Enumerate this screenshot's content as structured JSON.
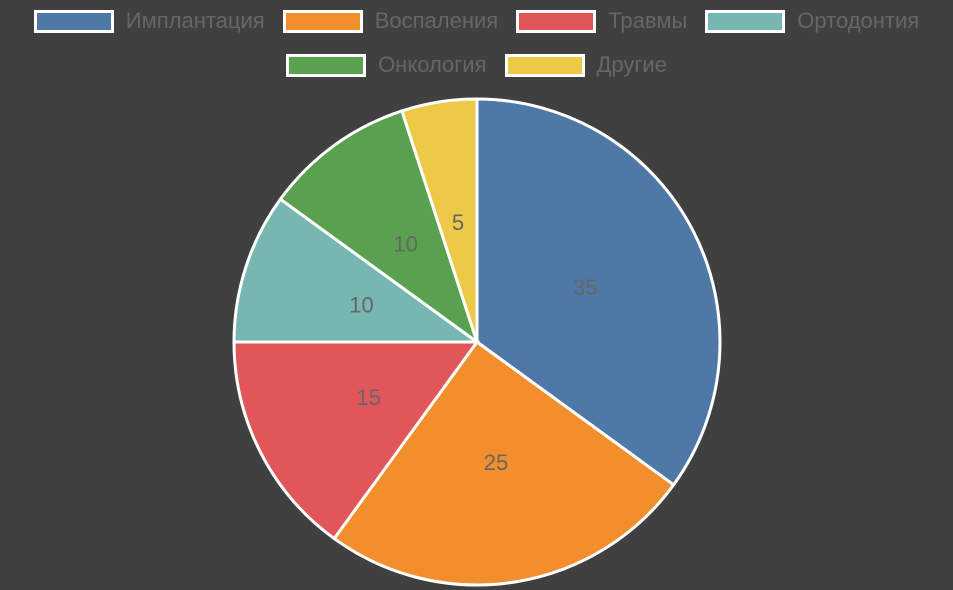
{
  "chart_data": {
    "type": "pie",
    "categories": [
      "Имплантация",
      "Воспаления",
      "Травмы",
      "Ортодонтия",
      "Онкология",
      "Другие"
    ],
    "values": [
      35,
      25,
      15,
      10,
      10,
      5
    ],
    "colors": [
      "#4e79a7",
      "#f28e2b",
      "#e15759",
      "#76b7b2",
      "#59a14f",
      "#edc948"
    ],
    "legend": "top",
    "start_angle": "top",
    "direction": "clockwise",
    "data_labels": true
  }
}
